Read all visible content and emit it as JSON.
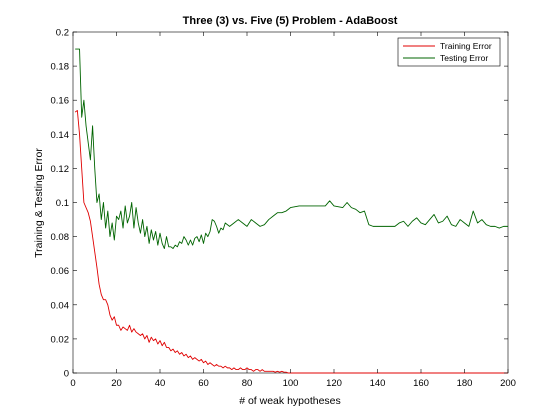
{
  "chart_data": {
    "type": "line",
    "title": "Three (3) vs. Five (5) Problem - AdaBoost",
    "xlabel": "# of weak hypotheses",
    "ylabel": "Training & Testing Error",
    "xlim": [
      0,
      200
    ],
    "ylim": [
      0,
      0.2
    ],
    "xticks": [
      0,
      20,
      40,
      60,
      80,
      100,
      120,
      140,
      160,
      180,
      200
    ],
    "yticks": [
      0,
      0.02,
      0.04,
      0.06,
      0.08,
      0.1,
      0.12,
      0.14,
      0.16,
      0.18,
      0.2
    ],
    "xtick_labels": [
      "0",
      "20",
      "40",
      "60",
      "80",
      "100",
      "120",
      "140",
      "160",
      "180",
      "200"
    ],
    "ytick_labels": [
      "0",
      "0.02",
      "0.04",
      "0.06",
      "0.08",
      "0.1",
      "0.12",
      "0.14",
      "0.16",
      "0.18",
      "0.2"
    ],
    "grid": false,
    "legend_position": "top-right",
    "series": [
      {
        "name": "Training Error",
        "color": "#e00000",
        "points": [
          [
            1,
            0.153
          ],
          [
            2,
            0.154
          ],
          [
            3,
            0.14
          ],
          [
            4,
            0.12
          ],
          [
            5,
            0.1
          ],
          [
            6,
            0.097
          ],
          [
            7,
            0.094
          ],
          [
            8,
            0.089
          ],
          [
            9,
            0.08
          ],
          [
            10,
            0.071
          ],
          [
            11,
            0.062
          ],
          [
            12,
            0.052
          ],
          [
            13,
            0.046
          ],
          [
            14,
            0.043
          ],
          [
            15,
            0.043
          ],
          [
            16,
            0.04
          ],
          [
            17,
            0.034
          ],
          [
            18,
            0.031
          ],
          [
            19,
            0.033
          ],
          [
            20,
            0.028
          ],
          [
            21,
            0.028
          ],
          [
            22,
            0.025
          ],
          [
            23,
            0.027
          ],
          [
            24,
            0.026
          ],
          [
            25,
            0.025
          ],
          [
            26,
            0.028
          ],
          [
            27,
            0.024
          ],
          [
            28,
            0.026
          ],
          [
            29,
            0.024
          ],
          [
            30,
            0.023
          ],
          [
            31,
            0.022
          ],
          [
            32,
            0.023
          ],
          [
            33,
            0.02
          ],
          [
            34,
            0.022
          ],
          [
            35,
            0.018
          ],
          [
            36,
            0.021
          ],
          [
            37,
            0.019
          ],
          [
            38,
            0.02
          ],
          [
            39,
            0.017
          ],
          [
            40,
            0.019
          ],
          [
            41,
            0.016
          ],
          [
            42,
            0.018
          ],
          [
            43,
            0.015
          ],
          [
            44,
            0.015
          ],
          [
            45,
            0.013
          ],
          [
            46,
            0.014
          ],
          [
            47,
            0.012
          ],
          [
            48,
            0.013
          ],
          [
            49,
            0.011
          ],
          [
            50,
            0.012
          ],
          [
            51,
            0.01
          ],
          [
            52,
            0.011
          ],
          [
            53,
            0.009
          ],
          [
            54,
            0.01
          ],
          [
            55,
            0.008
          ],
          [
            56,
            0.009
          ],
          [
            57,
            0.008
          ],
          [
            58,
            0.007
          ],
          [
            59,
            0.008
          ],
          [
            60,
            0.006
          ],
          [
            61,
            0.007
          ],
          [
            62,
            0.005
          ],
          [
            63,
            0.006
          ],
          [
            64,
            0.005
          ],
          [
            65,
            0.004
          ],
          [
            66,
            0.005
          ],
          [
            67,
            0.004
          ],
          [
            68,
            0.004
          ],
          [
            69,
            0.003
          ],
          [
            70,
            0.004
          ],
          [
            71,
            0.003
          ],
          [
            72,
            0.003
          ],
          [
            73,
            0.002
          ],
          [
            74,
            0.003
          ],
          [
            75,
            0.002
          ],
          [
            76,
            0.002
          ],
          [
            77,
            0.003
          ],
          [
            78,
            0.002
          ],
          [
            79,
            0.002
          ],
          [
            80,
            0.003
          ],
          [
            81,
            0.002
          ],
          [
            82,
            0.002
          ],
          [
            83,
            0.001
          ],
          [
            84,
            0.002
          ],
          [
            85,
            0.002
          ],
          [
            86,
            0.001
          ],
          [
            87,
            0.002
          ],
          [
            88,
            0.001
          ],
          [
            89,
            0.001
          ],
          [
            90,
            0.001
          ],
          [
            91,
            0.001
          ],
          [
            92,
            0.001
          ],
          [
            93,
            0.0005
          ],
          [
            94,
            0.001
          ],
          [
            95,
            0.0005
          ],
          [
            96,
            0.001
          ],
          [
            97,
            0.0005
          ],
          [
            98,
            0.0005
          ],
          [
            99,
            0
          ],
          [
            100,
            0
          ],
          [
            110,
            0
          ],
          [
            120,
            0
          ],
          [
            140,
            0
          ],
          [
            160,
            0
          ],
          [
            180,
            0
          ],
          [
            200,
            0
          ]
        ]
      },
      {
        "name": "Testing Error",
        "color": "#006400",
        "points": [
          [
            1,
            0.19
          ],
          [
            2,
            0.19
          ],
          [
            3,
            0.19
          ],
          [
            4,
            0.15
          ],
          [
            5,
            0.16
          ],
          [
            6,
            0.145
          ],
          [
            7,
            0.135
          ],
          [
            8,
            0.125
          ],
          [
            9,
            0.145
          ],
          [
            10,
            0.12
          ],
          [
            11,
            0.1
          ],
          [
            12,
            0.105
          ],
          [
            13,
            0.09
          ],
          [
            14,
            0.1
          ],
          [
            15,
            0.085
          ],
          [
            16,
            0.095
          ],
          [
            17,
            0.08
          ],
          [
            18,
            0.088
          ],
          [
            19,
            0.078
          ],
          [
            20,
            0.092
          ],
          [
            21,
            0.09
          ],
          [
            22,
            0.095
          ],
          [
            23,
            0.085
          ],
          [
            24,
            0.098
          ],
          [
            25,
            0.088
          ],
          [
            26,
            0.092
          ],
          [
            27,
            0.1
          ],
          [
            28,
            0.085
          ],
          [
            29,
            0.097
          ],
          [
            30,
            0.088
          ],
          [
            31,
            0.082
          ],
          [
            32,
            0.09
          ],
          [
            33,
            0.08
          ],
          [
            34,
            0.086
          ],
          [
            35,
            0.076
          ],
          [
            36,
            0.084
          ],
          [
            37,
            0.078
          ],
          [
            38,
            0.083
          ],
          [
            39,
            0.075
          ],
          [
            40,
            0.082
          ],
          [
            41,
            0.076
          ],
          [
            42,
            0.073
          ],
          [
            43,
            0.08
          ],
          [
            44,
            0.074
          ],
          [
            45,
            0.074
          ],
          [
            46,
            0.073
          ],
          [
            47,
            0.075
          ],
          [
            48,
            0.074
          ],
          [
            49,
            0.077
          ],
          [
            50,
            0.076
          ],
          [
            51,
            0.08
          ],
          [
            52,
            0.078
          ],
          [
            53,
            0.075
          ],
          [
            54,
            0.078
          ],
          [
            55,
            0.075
          ],
          [
            56,
            0.079
          ],
          [
            57,
            0.08
          ],
          [
            58,
            0.077
          ],
          [
            59,
            0.081
          ],
          [
            60,
            0.076
          ],
          [
            61,
            0.082
          ],
          [
            62,
            0.08
          ],
          [
            63,
            0.083
          ],
          [
            64,
            0.09
          ],
          [
            65,
            0.089
          ],
          [
            66,
            0.086
          ],
          [
            67,
            0.082
          ],
          [
            68,
            0.085
          ],
          [
            69,
            0.084
          ],
          [
            70,
            0.088
          ],
          [
            72,
            0.086
          ],
          [
            74,
            0.088
          ],
          [
            76,
            0.09
          ],
          [
            78,
            0.088
          ],
          [
            80,
            0.086
          ],
          [
            82,
            0.09
          ],
          [
            84,
            0.088
          ],
          [
            86,
            0.086
          ],
          [
            88,
            0.087
          ],
          [
            90,
            0.09
          ],
          [
            92,
            0.092
          ],
          [
            94,
            0.094
          ],
          [
            96,
            0.094
          ],
          [
            98,
            0.095
          ],
          [
            100,
            0.097
          ],
          [
            104,
            0.098
          ],
          [
            108,
            0.098
          ],
          [
            112,
            0.098
          ],
          [
            116,
            0.098
          ],
          [
            118,
            0.101
          ],
          [
            120,
            0.098
          ],
          [
            124,
            0.097
          ],
          [
            126,
            0.1
          ],
          [
            128,
            0.097
          ],
          [
            130,
            0.096
          ],
          [
            132,
            0.094
          ],
          [
            134,
            0.095
          ],
          [
            136,
            0.087
          ],
          [
            138,
            0.086
          ],
          [
            140,
            0.086
          ],
          [
            144,
            0.086
          ],
          [
            148,
            0.086
          ],
          [
            150,
            0.088
          ],
          [
            152,
            0.089
          ],
          [
            154,
            0.086
          ],
          [
            156,
            0.089
          ],
          [
            158,
            0.091
          ],
          [
            160,
            0.088
          ],
          [
            162,
            0.087
          ],
          [
            164,
            0.09
          ],
          [
            166,
            0.093
          ],
          [
            168,
            0.088
          ],
          [
            170,
            0.089
          ],
          [
            172,
            0.092
          ],
          [
            174,
            0.087
          ],
          [
            176,
            0.086
          ],
          [
            178,
            0.09
          ],
          [
            180,
            0.088
          ],
          [
            182,
            0.086
          ],
          [
            184,
            0.095
          ],
          [
            186,
            0.088
          ],
          [
            188,
            0.09
          ],
          [
            190,
            0.087
          ],
          [
            192,
            0.086
          ],
          [
            194,
            0.086
          ],
          [
            196,
            0.085
          ],
          [
            198,
            0.086
          ],
          [
            200,
            0.086
          ]
        ]
      }
    ]
  }
}
